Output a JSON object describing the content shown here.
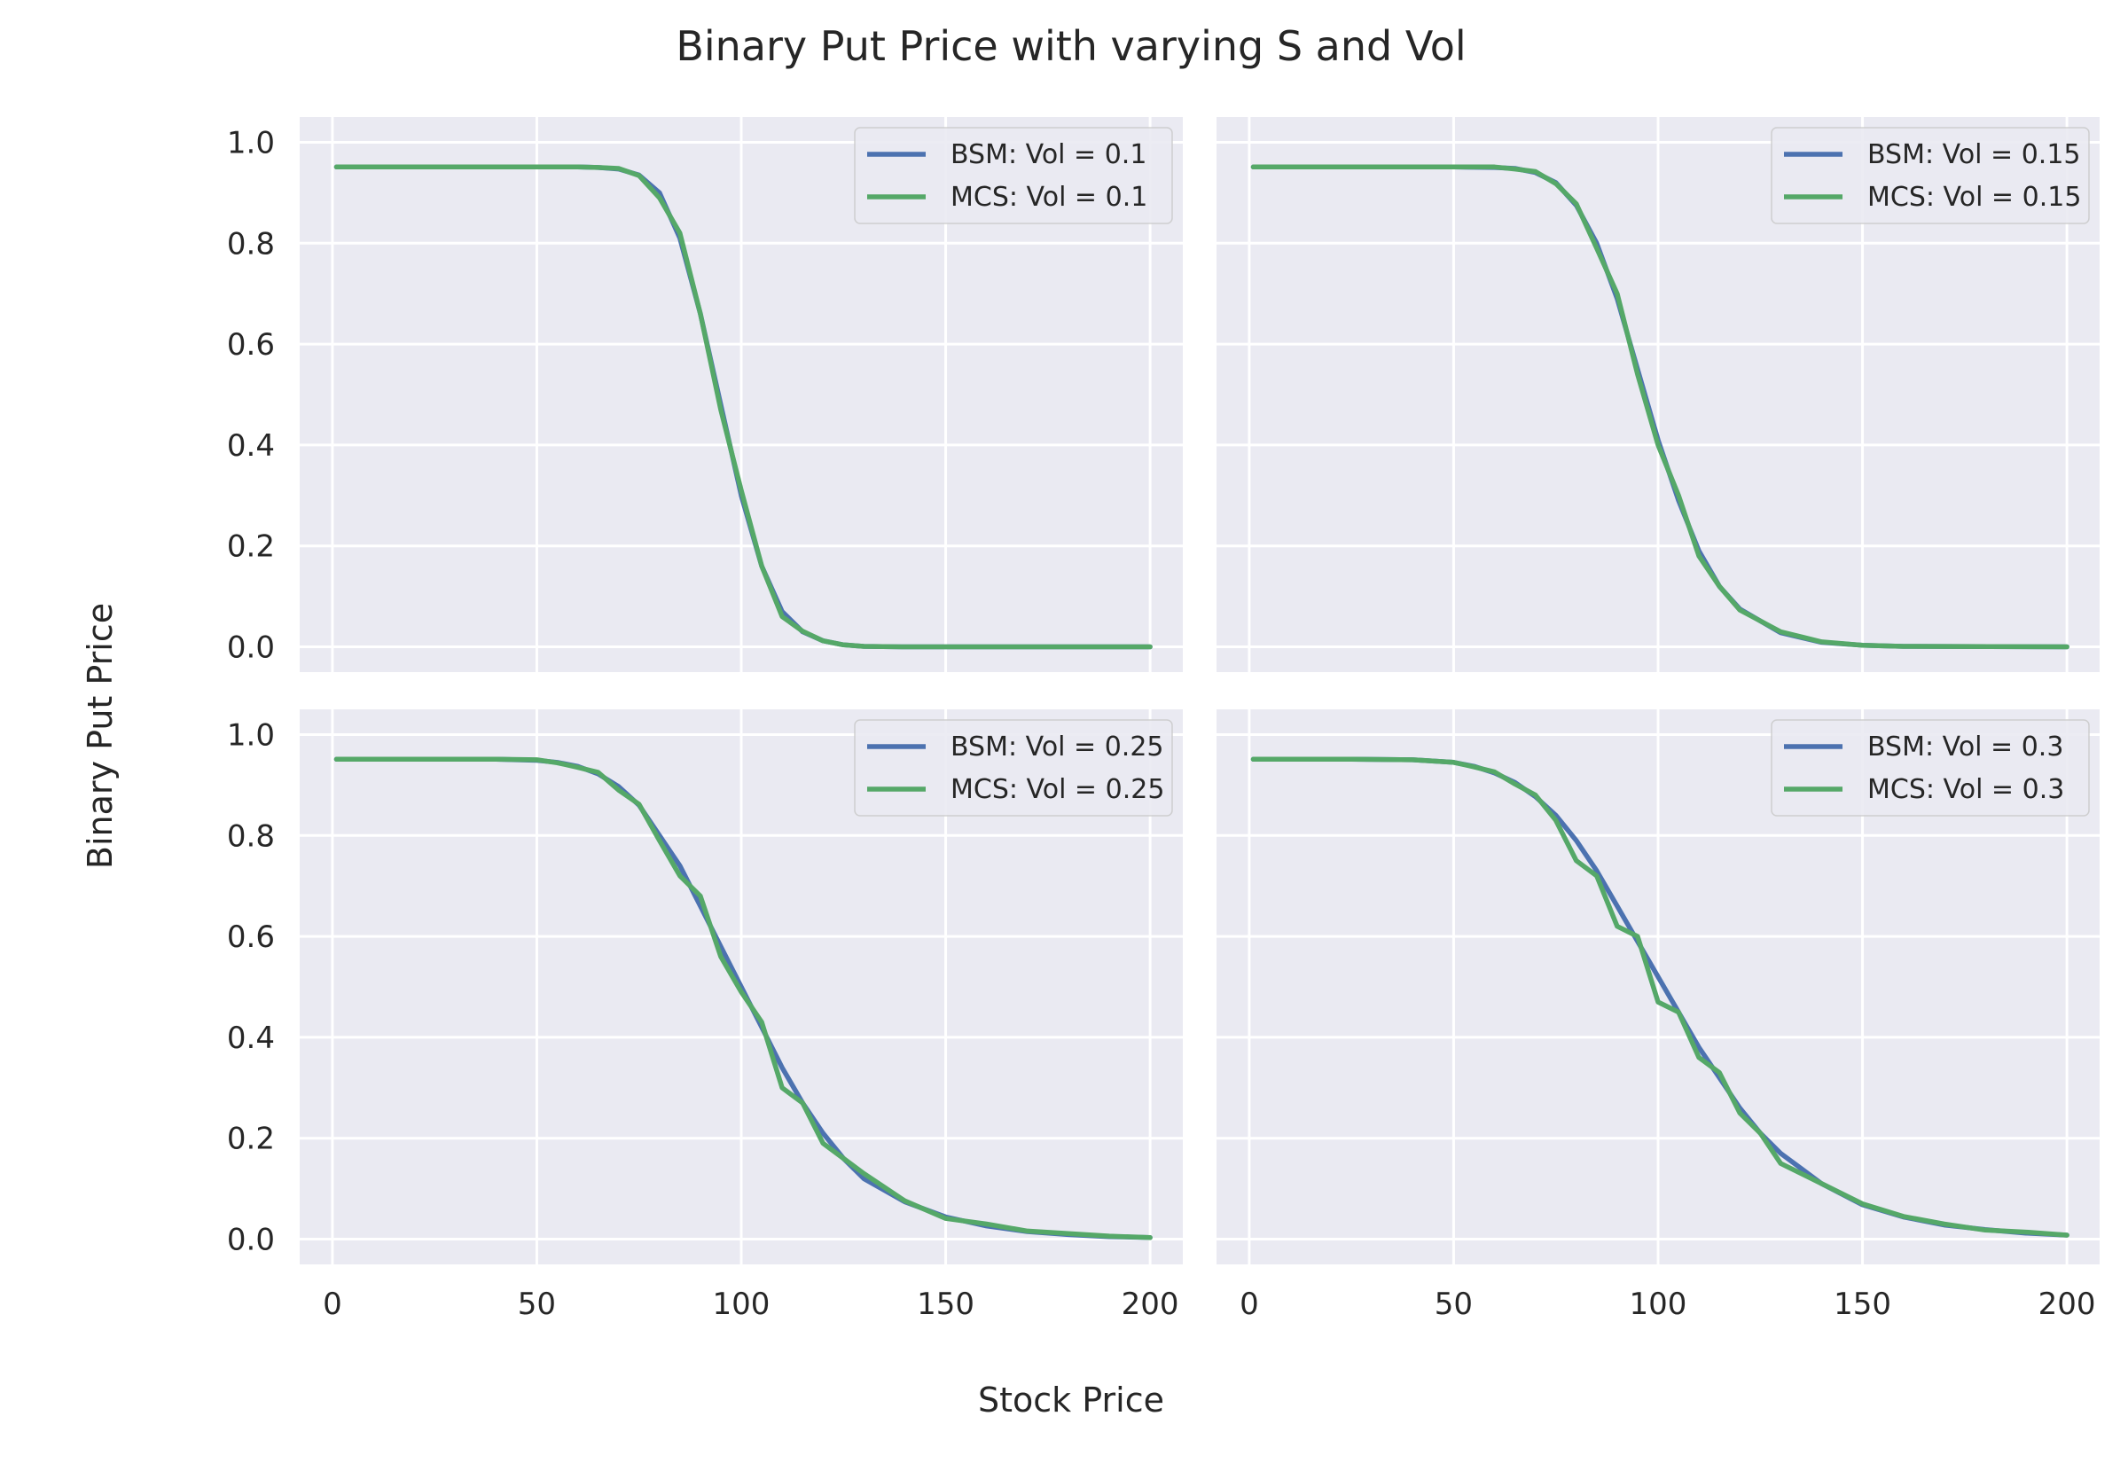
{
  "figure": {
    "title": "Binary Put Price with varying S and Vol",
    "xlabel": "Stock Price",
    "ylabel": "Binary Put Price"
  },
  "colors": {
    "background": "#eaeaf2",
    "grid": "#ffffff",
    "bsm": "#4c72b0",
    "mcs": "#55a868"
  },
  "chart_data": [
    {
      "type": "line",
      "vol": 0.1,
      "xlim": [
        -8,
        208
      ],
      "ylim": [
        -0.05,
        1.05
      ],
      "xticks": [
        0,
        50,
        100,
        150,
        200
      ],
      "yticks": [
        0.0,
        0.2,
        0.4,
        0.6,
        0.8,
        1.0
      ],
      "legend_position": "top-right",
      "x": [
        1,
        25,
        50,
        60,
        65,
        70,
        75,
        80,
        85,
        90,
        95,
        100,
        105,
        110,
        115,
        120,
        125,
        130,
        140,
        150,
        200
      ],
      "series": [
        {
          "name": "BSM: Vol = 0.1",
          "values": [
            0.951,
            0.951,
            0.951,
            0.951,
            0.95,
            0.947,
            0.935,
            0.9,
            0.81,
            0.66,
            0.48,
            0.3,
            0.16,
            0.07,
            0.03,
            0.012,
            0.004,
            0.001,
            0.0,
            0.0,
            0.0
          ]
        },
        {
          "name": "MCS: Vol = 0.1",
          "values": [
            0.951,
            0.951,
            0.951,
            0.951,
            0.95,
            0.948,
            0.934,
            0.89,
            0.82,
            0.66,
            0.47,
            0.31,
            0.16,
            0.06,
            0.031,
            0.012,
            0.004,
            0.001,
            0.0,
            0.0,
            0.0
          ]
        }
      ]
    },
    {
      "type": "line",
      "vol": 0.15,
      "xlim": [
        -8,
        208
      ],
      "ylim": [
        -0.05,
        1.05
      ],
      "xticks": [
        0,
        50,
        100,
        150,
        200
      ],
      "yticks": [
        0.0,
        0.2,
        0.4,
        0.6,
        0.8,
        1.0
      ],
      "legend_position": "top-right",
      "x": [
        1,
        25,
        50,
        60,
        65,
        70,
        75,
        80,
        85,
        90,
        95,
        100,
        105,
        110,
        115,
        120,
        130,
        140,
        150,
        160,
        200
      ],
      "series": [
        {
          "name": "BSM: Vol = 0.15",
          "values": [
            0.951,
            0.951,
            0.951,
            0.95,
            0.948,
            0.94,
            0.92,
            0.875,
            0.8,
            0.69,
            0.55,
            0.41,
            0.29,
            0.19,
            0.12,
            0.075,
            0.028,
            0.009,
            0.003,
            0.001,
            0.0
          ]
        },
        {
          "name": "MCS: Vol = 0.15",
          "values": [
            0.951,
            0.951,
            0.951,
            0.951,
            0.947,
            0.942,
            0.918,
            0.878,
            0.79,
            0.7,
            0.54,
            0.4,
            0.3,
            0.18,
            0.12,
            0.073,
            0.03,
            0.01,
            0.003,
            0.001,
            0.0
          ]
        }
      ]
    },
    {
      "type": "line",
      "vol": 0.25,
      "xlim": [
        -8,
        208
      ],
      "ylim": [
        -0.05,
        1.05
      ],
      "xticks": [
        0,
        50,
        100,
        150,
        200
      ],
      "yticks": [
        0.0,
        0.2,
        0.4,
        0.6,
        0.8,
        1.0
      ],
      "legend_position": "top-right",
      "x": [
        1,
        25,
        40,
        50,
        55,
        60,
        65,
        70,
        75,
        80,
        85,
        90,
        95,
        100,
        105,
        110,
        115,
        120,
        125,
        130,
        140,
        150,
        160,
        170,
        180,
        190,
        200
      ],
      "series": [
        {
          "name": "BSM: Vol = 0.25",
          "values": [
            0.951,
            0.951,
            0.951,
            0.949,
            0.945,
            0.937,
            0.922,
            0.897,
            0.86,
            0.8,
            0.74,
            0.66,
            0.58,
            0.5,
            0.42,
            0.34,
            0.27,
            0.21,
            0.16,
            0.12,
            0.074,
            0.044,
            0.026,
            0.015,
            0.009,
            0.005,
            0.003
          ]
        },
        {
          "name": "MCS: Vol = 0.25",
          "values": [
            0.951,
            0.951,
            0.951,
            0.95,
            0.944,
            0.935,
            0.925,
            0.89,
            0.862,
            0.79,
            0.72,
            0.68,
            0.56,
            0.49,
            0.43,
            0.3,
            0.27,
            0.19,
            0.16,
            0.13,
            0.076,
            0.041,
            0.03,
            0.016,
            0.011,
            0.006,
            0.003
          ]
        }
      ]
    },
    {
      "type": "line",
      "vol": 0.3,
      "xlim": [
        -8,
        208
      ],
      "ylim": [
        -0.05,
        1.05
      ],
      "xticks": [
        0,
        50,
        100,
        150,
        200
      ],
      "yticks": [
        0.0,
        0.2,
        0.4,
        0.6,
        0.8,
        1.0
      ],
      "legend_position": "top-right",
      "x": [
        1,
        25,
        40,
        50,
        55,
        60,
        65,
        70,
        75,
        80,
        85,
        90,
        95,
        100,
        105,
        110,
        115,
        120,
        125,
        130,
        140,
        150,
        160,
        170,
        180,
        190,
        200
      ],
      "series": [
        {
          "name": "BSM: Vol = 0.3",
          "values": [
            0.951,
            0.951,
            0.95,
            0.945,
            0.937,
            0.924,
            0.905,
            0.877,
            0.84,
            0.79,
            0.73,
            0.66,
            0.59,
            0.52,
            0.45,
            0.38,
            0.32,
            0.26,
            0.21,
            0.17,
            0.11,
            0.068,
            0.044,
            0.028,
            0.019,
            0.012,
            0.008
          ]
        },
        {
          "name": "MCS: Vol = 0.3",
          "values": [
            0.951,
            0.951,
            0.95,
            0.945,
            0.936,
            0.926,
            0.902,
            0.88,
            0.83,
            0.75,
            0.72,
            0.62,
            0.6,
            0.47,
            0.45,
            0.36,
            0.33,
            0.25,
            0.21,
            0.15,
            0.11,
            0.07,
            0.045,
            0.03,
            0.018,
            0.014,
            0.008
          ]
        }
      ]
    }
  ]
}
